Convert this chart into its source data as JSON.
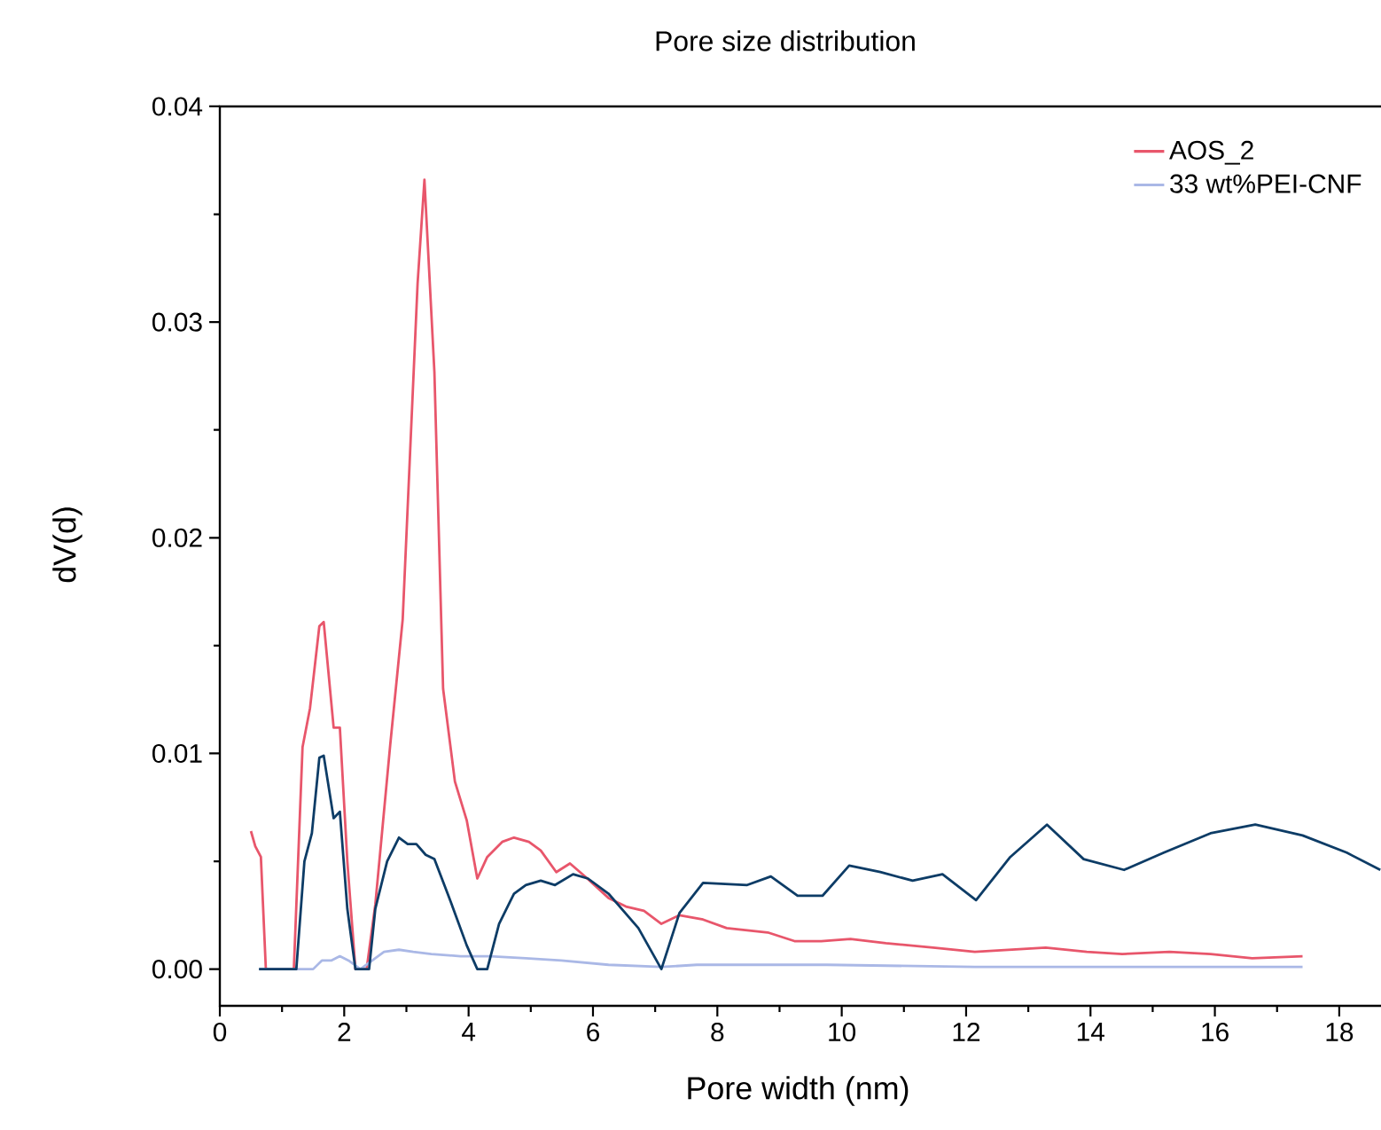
{
  "chart_data": {
    "type": "line",
    "title": "Pore size distribution",
    "xlabel": "Pore width (nm)",
    "ylabel": "dV(d)",
    "xlim": [
      0,
      18.7
    ],
    "ylim": [
      -0.0017,
      0.04
    ],
    "xticks": [
      0,
      2,
      4,
      6,
      8,
      10,
      12,
      14,
      16,
      18
    ],
    "yticks": [
      {
        "value": 0,
        "label": "0.00"
      },
      {
        "value": 0.01,
        "label": "0.01"
      },
      {
        "value": 0.02,
        "label": "0.02"
      },
      {
        "value": 0.03,
        "label": "0.03"
      },
      {
        "value": 0.04,
        "label": "0.04"
      }
    ],
    "legend": "top right",
    "series": [
      {
        "name": "AOS_2",
        "color": "#e8566b",
        "x": [
          0.5,
          0.57,
          0.66,
          0.74,
          1.19,
          1.33,
          1.45,
          1.6,
          1.67,
          1.83,
          1.93,
          2.05,
          2.18,
          2.36,
          2.5,
          2.74,
          2.94,
          3.18,
          3.29,
          3.45,
          3.59,
          3.78,
          3.97,
          4.14,
          4.3,
          4.54,
          4.73,
          4.97,
          5.16,
          5.41,
          5.63,
          5.87,
          6.25,
          6.53,
          6.82,
          7.1,
          7.39,
          7.77,
          8.15,
          8.81,
          9.24,
          9.67,
          10.14,
          10.71,
          11.47,
          12.14,
          13.28,
          13.94,
          14.51,
          15.27,
          15.93,
          16.6,
          17.41
        ],
        "values": [
          0.0064,
          0.0057,
          0.0052,
          0,
          0,
          0.0103,
          0.0121,
          0.0159,
          0.0161,
          0.0112,
          0.0112,
          0.005,
          0,
          0,
          0.003,
          0.0104,
          0.0162,
          0.0318,
          0.0366,
          0.0277,
          0.013,
          0.0087,
          0.0069,
          0.0042,
          0.0052,
          0.0059,
          0.0061,
          0.0059,
          0.0055,
          0.0045,
          0.0049,
          0.0043,
          0.0033,
          0.0029,
          0.0027,
          0.0021,
          0.0025,
          0.0023,
          0.0019,
          0.0017,
          0.0013,
          0.0013,
          0.0014,
          0.0012,
          0.001,
          0.0008,
          0.001,
          0.0008,
          0.0007,
          0.0008,
          0.0007,
          0.0005,
          0.0006
        ]
      },
      {
        "name": "33 wt%PEI-CNF",
        "color": "#aab8e6",
        "x": [
          0.63,
          1.5,
          1.64,
          1.79,
          1.93,
          2.07,
          2.26,
          2.45,
          2.64,
          2.88,
          3.11,
          3.4,
          3.87,
          4.35,
          4.92,
          5.49,
          6.25,
          7.1,
          7.67,
          9.0,
          9.76,
          12.14,
          14.51,
          17.41
        ],
        "values": [
          0,
          0,
          0.0004,
          0.0004,
          0.0006,
          0.0004,
          0,
          0.0004,
          0.0008,
          0.0009,
          0.0008,
          0.0007,
          0.0006,
          0.0006,
          0.0005,
          0.0004,
          0.0002,
          0.0001,
          0.0002,
          0.0002,
          0.0002,
          0.0001,
          0.0001,
          0.0001
        ]
      },
      {
        "color": "#0d3c66",
        "x": [
          0.63,
          1.23,
          1.36,
          1.48,
          1.6,
          1.67,
          1.83,
          1.93,
          2.05,
          2.18,
          2.4,
          2.5,
          2.69,
          2.88,
          3.02,
          3.16,
          3.31,
          3.45,
          3.69,
          3.97,
          4.14,
          4.3,
          4.49,
          4.73,
          4.92,
          5.16,
          5.39,
          5.68,
          5.92,
          6.25,
          6.73,
          7.1,
          7.39,
          7.77,
          8.48,
          8.86,
          9.29,
          9.69,
          10.12,
          10.62,
          11.14,
          11.62,
          12.16,
          12.71,
          13.3,
          13.89,
          14.54,
          15.18,
          15.93,
          16.65,
          17.41,
          18.12,
          18.66
        ],
        "values": [
          0,
          0,
          0.005,
          0.0063,
          0.0098,
          0.0099,
          0.007,
          0.0073,
          0.0028,
          0,
          0,
          0.0028,
          0.005,
          0.0061,
          0.0058,
          0.0058,
          0.0053,
          0.0051,
          0.0033,
          0.0011,
          0,
          0,
          0.0021,
          0.0035,
          0.0039,
          0.0041,
          0.0039,
          0.0044,
          0.0042,
          0.0035,
          0.0019,
          0,
          0.0026,
          0.004,
          0.0039,
          0.0043,
          0.0034,
          0.0034,
          0.0048,
          0.0045,
          0.0041,
          0.0044,
          0.0032,
          0.0052,
          0.0067,
          0.0051,
          0.0046,
          0.0054,
          0.0063,
          0.0067,
          0.0062,
          0.0054,
          0.0046
        ]
      }
    ]
  }
}
